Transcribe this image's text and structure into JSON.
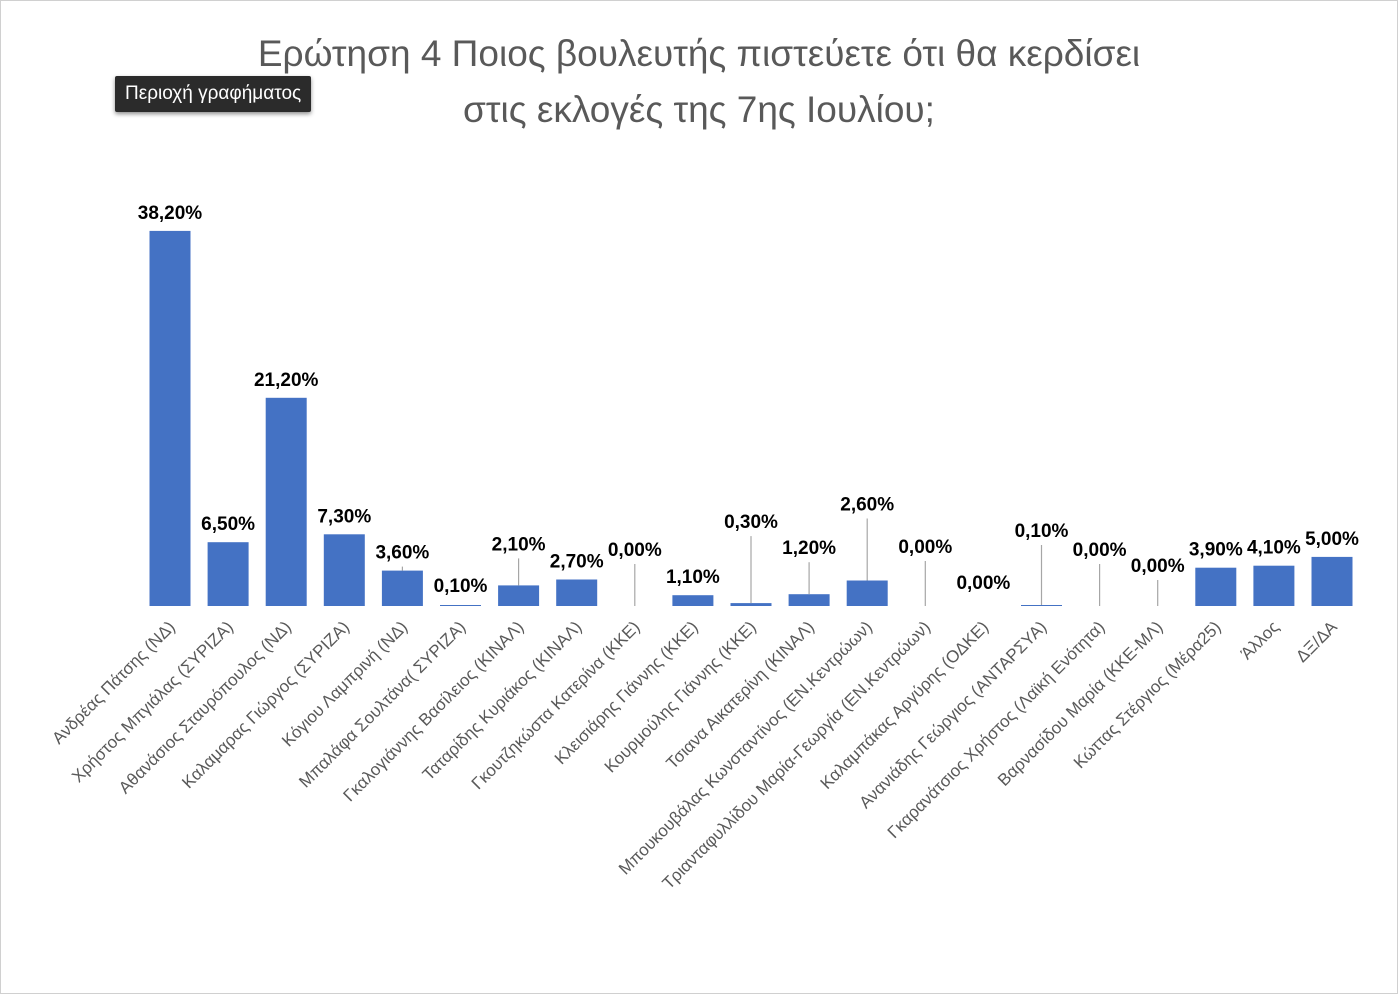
{
  "chart": {
    "title_line1": "Ερώτηση 4 Ποιος βουλευτής πιστεύετε ότι θα κερδίσει",
    "title_line2": "στις εκλογές της 7ης Ιουλίου;",
    "tooltip": "Περιοχή γραφήματος"
  },
  "colors": {
    "bar": "#4472c4",
    "title": "#595959",
    "tick": "#595959",
    "tooltip_bg": "#2b2b2b"
  },
  "chart_data": {
    "type": "bar",
    "title": "Ερώτηση 4 Ποιος βουλευτής πιστεύετε ότι θα κερδίσει στις εκλογές της 7ης Ιουλίου;",
    "xlabel": "",
    "ylabel": "",
    "grid": false,
    "legend": "none",
    "ylim": [
      0,
      40
    ],
    "categories": [
      "Ανδρέας Πάτσης (ΝΔ)",
      "Χρήστος Μπγιάλας (ΣΥΡΙΖΑ)",
      "Αθανάσιος Σταυρόπουλος (ΝΔ)",
      "Καλαμαρας Γιώργος (ΣΥΡΙΖΑ)",
      "Κόγιου Λαμπρινή (ΝΔ)",
      "Μπαλάφα Σουλτάνα( ΣΥΡΙΖΑ)",
      "Γκαλογιάννης Βασίλειος (ΚΙΝΑΛ)",
      "Ταταρίδης Κυριάκος (ΚΙΝΑΛ)",
      "Γκουτζηκώστα Κατερίνα (ΚΚΕ)",
      "Κλεισιάρης Γιάννης (ΚΚΕ)",
      "Κουρμούλης Γιάννης (ΚΚΕ)",
      "Τσιανα Αικατερίνη (ΚΙΝΑΛ)",
      "Μπουκουβάλας Κωνσταντίνος (ΕΝ.Κεντρώων)",
      "Τριανταφυλλίδου Μαρία-Γεωργία (ΕΝ.Κεντρώων)",
      "Καλαμπάκας Αργύρης (ΟΔΚΕ)",
      "Ανανιάδης Γεώργιος (ΑΝΤΑΡΣΥΑ)",
      "Γκαρανάτσιος Χρήστος (Λαϊκή Ενότητα)",
      "Βαρνασίδου Μαρία (ΚΚΕ-ΜΛ)",
      "Κώττας Στέργιος (Μέρα25)",
      "Άλλος",
      "ΔΞ/ΔΑ"
    ],
    "values": [
      38.2,
      6.5,
      21.2,
      7.3,
      3.6,
      0.1,
      2.1,
      2.7,
      0.0,
      1.1,
      0.3,
      1.2,
      2.6,
      0.0,
      0.0,
      0.1,
      0.0,
      0.0,
      3.9,
      4.1,
      5.0
    ],
    "data_labels": [
      "38,20%",
      "6,50%",
      "21,20%",
      "7,30%",
      "3,60%",
      "0,10%",
      "2,10%",
      "2,70%",
      "0,00%",
      "1,10%",
      "0,30%",
      "1,20%",
      "2,60%",
      "0,00%",
      "0,00%",
      "0,10%",
      "0,00%",
      "0,00%",
      "3,90%",
      "4,10%",
      "5,00%"
    ]
  }
}
